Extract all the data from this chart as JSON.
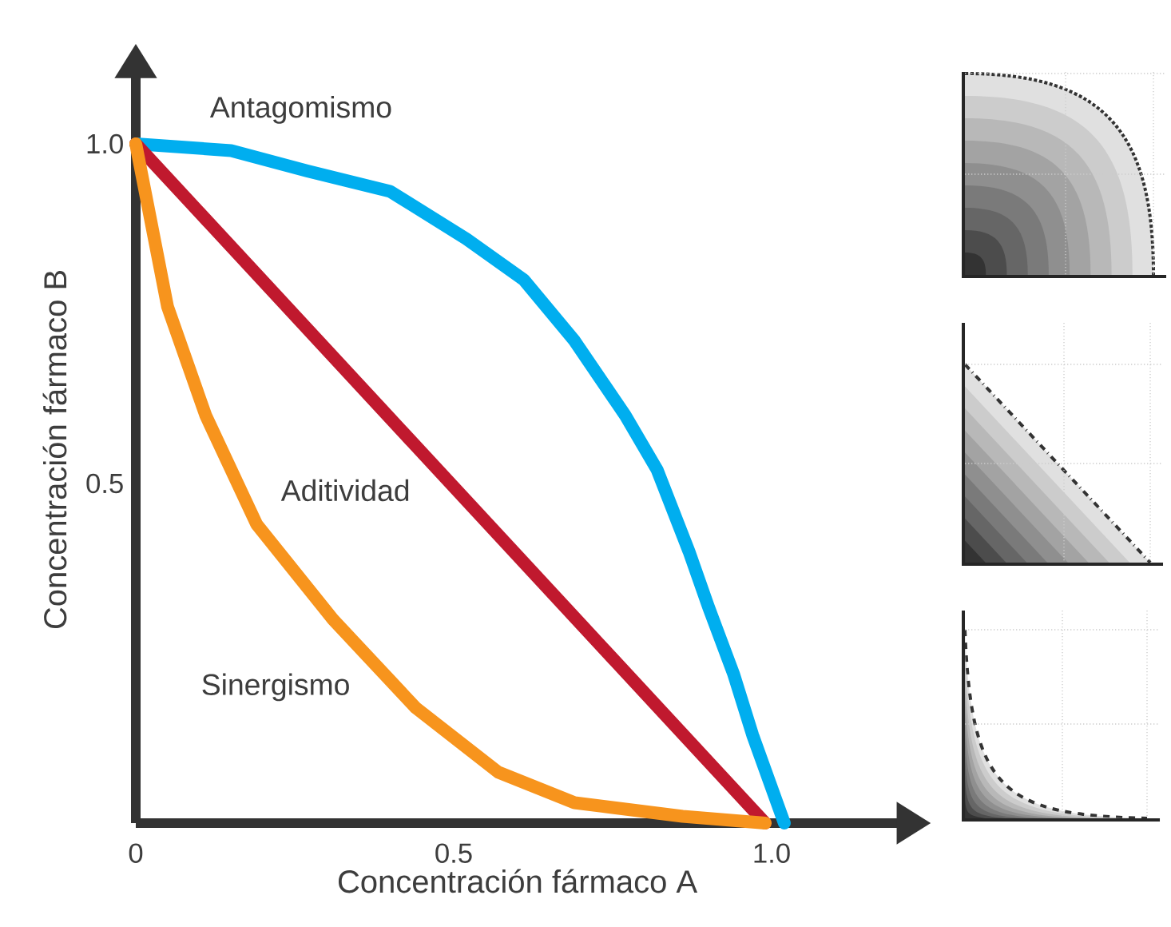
{
  "chart_data": {
    "type": "line",
    "xlabel": "Concentración fármaco A",
    "ylabel": "Concentración fármaco B",
    "xlim": [
      0,
      1.2
    ],
    "ylim": [
      0,
      1.1
    ],
    "xticks": [
      0,
      0.5,
      {
        "value": 1,
        "label": "1.0"
      }
    ],
    "yticks": [
      0.5,
      {
        "value": 1,
        "label": "1.0"
      }
    ],
    "series": [
      {
        "name": "Antagomismo",
        "color": "#00aeef",
        "x": [
          0,
          0.15,
          0.27,
          0.4,
          0.52,
          0.61,
          0.69,
          0.77,
          0.82,
          0.87,
          0.9,
          0.94,
          0.97,
          1.02
        ],
        "values": [
          1.0,
          0.99,
          0.96,
          0.93,
          0.86,
          0.8,
          0.71,
          0.6,
          0.52,
          0.4,
          0.32,
          0.22,
          0.13,
          0
        ]
      },
      {
        "name": "Aditividad",
        "color": "#c0192e",
        "x": [
          0,
          0.99
        ],
        "values": [
          1.0,
          0
        ]
      },
      {
        "name": "Sinergismo",
        "color": "#f7941d",
        "x": [
          0,
          0.05,
          0.11,
          0.19,
          0.31,
          0.44,
          0.57,
          0.69,
          0.86,
          0.99
        ],
        "values": [
          1.0,
          0.76,
          0.6,
          0.44,
          0.3,
          0.17,
          0.075,
          0.03,
          0.01,
          0
        ]
      }
    ]
  }
}
